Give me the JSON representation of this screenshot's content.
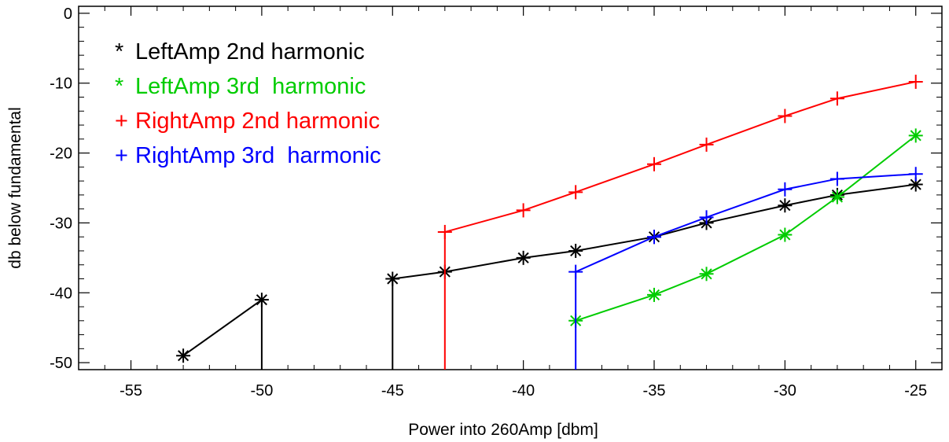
{
  "chart_data": {
    "type": "line",
    "title": "",
    "xlabel": "Power into 260Amp [dbm]",
    "ylabel": "db below fundamental",
    "xlim": [
      -57,
      -24
    ],
    "ylim": [
      -51,
      1
    ],
    "xticks": [
      -55,
      -50,
      -45,
      -40,
      -35,
      -30,
      -25
    ],
    "yticks": [
      0,
      -10,
      -20,
      -30,
      -40,
      -50
    ],
    "xtick_labels": [
      "-55",
      "-50",
      "-45",
      "-40",
      "-35",
      "-30",
      "-25"
    ],
    "ytick_labels": [
      "0",
      "-10",
      "-20",
      "-30",
      "-40",
      "-50"
    ],
    "grid": false,
    "legend_position": "top-left",
    "series": [
      {
        "name": "LeftAmp 2nd harmonic",
        "symbol": "*",
        "color": "#000000",
        "x": [
          -53,
          -50,
          -50,
          -45,
          -45,
          -43,
          -40,
          -38,
          -35,
          -33,
          -30,
          -28,
          -25
        ],
        "y": [
          -49,
          -41,
          -52,
          -52,
          -38,
          -37,
          -35,
          -34,
          -32,
          -30,
          -27.5,
          -26,
          -24.5
        ]
      },
      {
        "name": "LeftAmp 3rd  harmonic",
        "symbol": "*",
        "color": "#00cc00",
        "x": [
          -38,
          -35,
          -33,
          -30,
          -28,
          -25
        ],
        "y": [
          -44,
          -40.3,
          -37.3,
          -31.7,
          -26.3,
          -17.5
        ]
      },
      {
        "name": "RightAmp 2nd harmonic",
        "symbol": "+",
        "color": "#ff0000",
        "x": [
          -43,
          -43,
          -40,
          -38,
          -35,
          -33,
          -30,
          -28,
          -25
        ],
        "y": [
          -52,
          -31.3,
          -28.2,
          -25.6,
          -21.6,
          -18.8,
          -14.7,
          -12.2,
          -9.8
        ]
      },
      {
        "name": "RightAmp 3rd  harmonic",
        "symbol": "+",
        "color": "#0000ff",
        "x": [
          -38,
          -38,
          -35,
          -33,
          -30,
          -28,
          -25
        ],
        "y": [
          -52,
          -37,
          -32,
          -29.2,
          -25.2,
          -23.7,
          -23
        ]
      }
    ]
  }
}
